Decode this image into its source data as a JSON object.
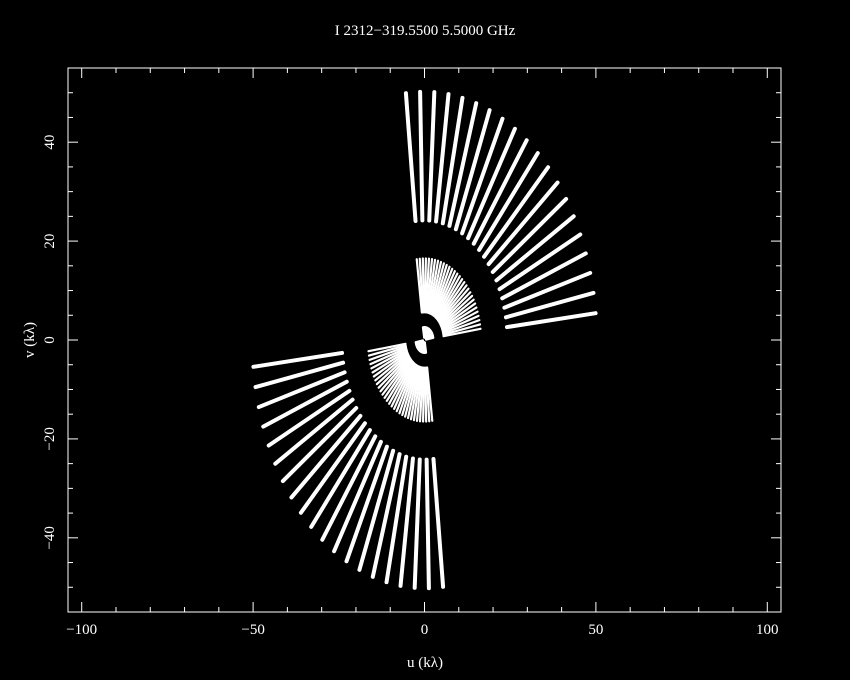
{
  "chart_data": {
    "type": "scatter",
    "title": "I 2312−319.5500 5.5000 GHz",
    "xlabel": "u (kλ)",
    "ylabel": "v (kλ)",
    "xlim": [
      -104,
      104
    ],
    "ylim": [
      -55,
      55
    ],
    "xticks": [
      {
        "value": -100,
        "label": "−100"
      },
      {
        "value": -50,
        "label": "−50"
      },
      {
        "value": 0,
        "label": "0"
      },
      {
        "value": 50,
        "label": "50"
      },
      {
        "value": 100,
        "label": "100"
      }
    ],
    "yticks": [
      {
        "value": -40,
        "label": "−40"
      },
      {
        "value": -20,
        "label": "−20"
      },
      {
        "value": 0,
        "label": "0"
      },
      {
        "value": 20,
        "label": "20"
      },
      {
        "value": 40,
        "label": "40"
      }
    ],
    "grid": false,
    "colors": {
      "background": "#000000",
      "foreground": "#ffffff"
    },
    "uv_tracks": {
      "description_of_shape": "symmetric radial uv-coverage; each track is a radial spoke from inner to outer radius at a given position angle (deg, from +u counter-clockwise); conjugate spokes mirror through origin",
      "outer_band": {
        "r_inner": 24.2,
        "r_outer": 50.2,
        "angle_start_deg": 6.2,
        "angle_end_deg": 96.2,
        "count": 20
      },
      "middle_band": {
        "r_inner": 5.6,
        "r_outer": 16.5,
        "angle_start_deg": 7.9,
        "angle_end_deg": 97.9,
        "count": 30
      },
      "inner_band": {
        "r_inner": 0.5,
        "r_outer": 2.6,
        "angle_start_deg": 10.0,
        "angle_end_deg": 100.0,
        "count": 24
      }
    }
  }
}
